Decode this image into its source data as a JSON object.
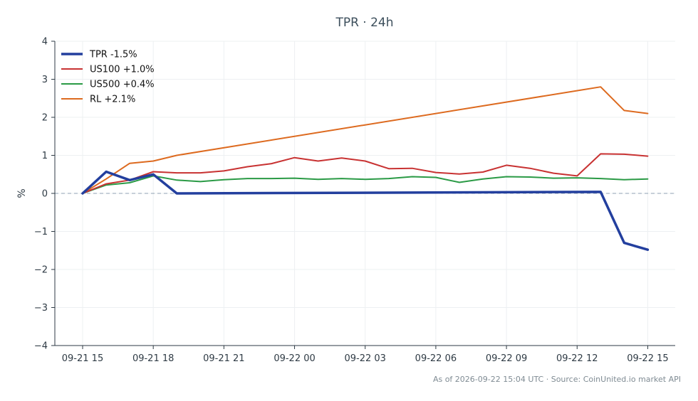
{
  "chart_data": {
    "type": "line",
    "title": "TPR · 24h",
    "ylabel": "%",
    "xlabel": "",
    "ylim": [
      -4,
      4
    ],
    "yticks": [
      4,
      3,
      2,
      1,
      0,
      -1,
      -2,
      -3,
      -4
    ],
    "ytick_labels": [
      "4",
      "3",
      "2",
      "1",
      "0",
      "−1",
      "−2",
      "−3",
      "−4"
    ],
    "xticks": [
      0,
      3,
      6,
      9,
      12,
      15,
      18,
      21,
      24
    ],
    "xtick_labels": [
      "09-21 15",
      "09-21 18",
      "09-21 21",
      "09-22 00",
      "09-22 03",
      "09-22 06",
      "09-22 09",
      "09-22 12",
      "09-22 15"
    ],
    "x_unit": "hours from 09-21 15",
    "grid": true,
    "zero_line": true,
    "legend_position": "top-left",
    "series": [
      {
        "name": "TPR -1.5%",
        "color": "#233f9e",
        "width": "thick",
        "x": [
          0,
          1,
          2,
          3,
          4,
          22,
          23,
          24
        ],
        "values": [
          0.0,
          0.57,
          0.35,
          0.5,
          0.0,
          0.04,
          -1.3,
          -1.48
        ]
      },
      {
        "name": "US100 +1.0%",
        "color": "#c83232",
        "width": "normal",
        "x": [
          0,
          1,
          2,
          3,
          4,
          5,
          6,
          7,
          8,
          9,
          10,
          11,
          12,
          13,
          14,
          15,
          16,
          17,
          18,
          19,
          20,
          21,
          22,
          23,
          24
        ],
        "values": [
          0.0,
          0.25,
          0.35,
          0.57,
          0.54,
          0.54,
          0.59,
          0.7,
          0.78,
          0.94,
          0.85,
          0.93,
          0.85,
          0.65,
          0.66,
          0.55,
          0.51,
          0.56,
          0.74,
          0.66,
          0.53,
          0.46,
          1.04,
          1.03,
          0.98
        ]
      },
      {
        "name": "US500 +0.4%",
        "color": "#2a9a45",
        "width": "normal",
        "x": [
          0,
          1,
          2,
          3,
          4,
          5,
          6,
          7,
          8,
          9,
          10,
          11,
          12,
          13,
          14,
          15,
          16,
          17,
          18,
          19,
          20,
          21,
          22,
          23,
          24
        ],
        "values": [
          0.0,
          0.22,
          0.28,
          0.46,
          0.35,
          0.31,
          0.36,
          0.39,
          0.39,
          0.4,
          0.37,
          0.39,
          0.37,
          0.39,
          0.44,
          0.42,
          0.29,
          0.38,
          0.44,
          0.43,
          0.4,
          0.41,
          0.39,
          0.36,
          0.38
        ]
      },
      {
        "name": "RL +2.1%",
        "color": "#dd6a1f",
        "width": "normal",
        "x": [
          0,
          1,
          2,
          3,
          4,
          22,
          23,
          24
        ],
        "values": [
          0.0,
          0.38,
          0.79,
          0.85,
          1.0,
          2.8,
          2.18,
          2.1
        ]
      }
    ]
  },
  "footer": "As of 2026-09-22 15:04 UTC · Source: CoinUnited.io market API"
}
